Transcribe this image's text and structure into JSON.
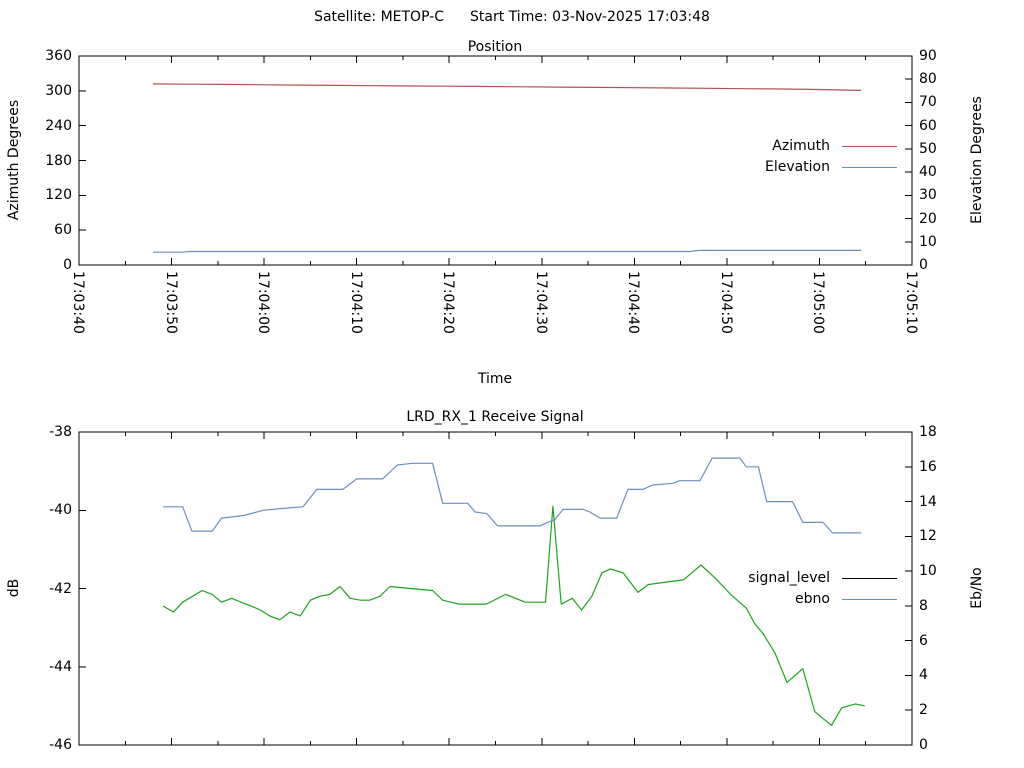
{
  "page": {
    "background": "#ffffff",
    "text_color": "#000000",
    "border_color": "#000000"
  },
  "header": {
    "satellite": "Satellite: METOP-C",
    "start_time": "Start Time: 03-Nov-2025 17:03:48"
  },
  "chart_data": [
    {
      "type": "line",
      "title": "Position",
      "xlabel": "Time",
      "grid": false,
      "legend_position": "right-middle-inside",
      "x_axis": {
        "range_seconds": [
          0,
          90
        ],
        "major_tick_seconds": 10,
        "minor_tick_seconds": 5,
        "tick_labels": [
          "17:03:40",
          "17:03:50",
          "17:04:00",
          "17:04:10",
          "17:04:20",
          "17:04:30",
          "17:04:40",
          "17:04:50",
          "17:05:00",
          "17:05:10"
        ]
      },
      "y_left": {
        "label": "Azimuth Degrees",
        "range": [
          0,
          360
        ],
        "ticks": [
          0,
          60,
          120,
          180,
          240,
          300,
          360
        ]
      },
      "y_right": {
        "label": "Elevation Degrees",
        "range": [
          0,
          90
        ],
        "ticks": [
          0,
          10,
          20,
          30,
          40,
          50,
          60,
          70,
          80,
          90
        ]
      },
      "series": [
        {
          "name": "Azimuth",
          "axis": "left",
          "color": "#b0524f",
          "legend_color": "#b0524f",
          "points": [
            [
              8,
              312.0
            ],
            [
              12,
              311.5
            ],
            [
              16,
              311.0
            ],
            [
              20,
              310.4
            ],
            [
              24,
              309.9
            ],
            [
              28,
              309.4
            ],
            [
              32,
              308.9
            ],
            [
              36,
              308.4
            ],
            [
              40,
              307.9
            ],
            [
              44,
              307.4
            ],
            [
              48,
              306.9
            ],
            [
              52,
              306.4
            ],
            [
              56,
              305.9
            ],
            [
              60,
              305.4
            ],
            [
              64,
              304.9
            ],
            [
              68,
              304.3
            ],
            [
              72,
              303.7
            ],
            [
              76,
              303.1
            ],
            [
              80,
              302.3
            ],
            [
              83,
              301.3
            ],
            [
              84.5,
              300.8
            ]
          ]
        },
        {
          "name": "Elevation",
          "axis": "right",
          "color": "#6d8ebf",
          "legend_color": "#6d8ebf",
          "points": [
            [
              8,
              5.5
            ],
            [
              11,
              5.5
            ],
            [
              12,
              5.8
            ],
            [
              66,
              5.8
            ],
            [
              67,
              6.3
            ],
            [
              84.5,
              6.3
            ]
          ]
        }
      ]
    },
    {
      "type": "line",
      "title": "LRD_RX_1 Receive Signal",
      "xlabel": "",
      "grid": false,
      "legend_position": "right-middle-inside",
      "x_axis": {
        "range_seconds": [
          0,
          90
        ],
        "major_tick_seconds": 10,
        "minor_tick_seconds": 5,
        "tick_labels": []
      },
      "y_left": {
        "label": "dB",
        "range": [
          -46,
          -38
        ],
        "ticks": [
          -38,
          -40,
          -42,
          -44,
          -46
        ]
      },
      "y_right": {
        "label": "Eb/No",
        "range": [
          0,
          18
        ],
        "ticks": [
          0,
          2,
          4,
          6,
          8,
          10,
          12,
          14,
          16,
          18
        ]
      },
      "series": [
        {
          "name": "signal_level",
          "axis": "left",
          "color": "#1ca41c",
          "legend_color": "#000000",
          "points": [
            [
              9.1,
              -42.45
            ],
            [
              10.2,
              -42.6
            ],
            [
              11.2,
              -42.35
            ],
            [
              13.3,
              -42.05
            ],
            [
              14.4,
              -42.15
            ],
            [
              15.4,
              -42.35
            ],
            [
              16.5,
              -42.25
            ],
            [
              17.5,
              -42.35
            ],
            [
              18.6,
              -42.45
            ],
            [
              19.6,
              -42.55
            ],
            [
              20.6,
              -42.7
            ],
            [
              21.7,
              -42.8
            ],
            [
              22.8,
              -42.6
            ],
            [
              23.9,
              -42.7
            ],
            [
              25.0,
              -42.3
            ],
            [
              26.0,
              -42.2
            ],
            [
              27.1,
              -42.15
            ],
            [
              28.2,
              -41.95
            ],
            [
              29.3,
              -42.25
            ],
            [
              30.4,
              -42.3
            ],
            [
              31.4,
              -42.3
            ],
            [
              32.5,
              -42.2
            ],
            [
              33.6,
              -41.95
            ],
            [
              35.8,
              -42.0
            ],
            [
              38.2,
              -42.05
            ],
            [
              39.3,
              -42.3
            ],
            [
              41.0,
              -42.4
            ],
            [
              44.0,
              -42.4
            ],
            [
              46.1,
              -42.15
            ],
            [
              48.2,
              -42.35
            ],
            [
              50.4,
              -42.35
            ],
            [
              51.2,
              -39.9
            ],
            [
              52.1,
              -42.4
            ],
            [
              53.3,
              -42.25
            ],
            [
              54.3,
              -42.55
            ],
            [
              55.4,
              -42.2
            ],
            [
              56.5,
              -41.6
            ],
            [
              57.4,
              -41.5
            ],
            [
              58.8,
              -41.6
            ],
            [
              60.4,
              -42.1
            ],
            [
              61.5,
              -41.9
            ],
            [
              63.0,
              -41.85
            ],
            [
              65.3,
              -41.78
            ],
            [
              67.2,
              -41.4
            ],
            [
              68.8,
              -41.75
            ],
            [
              70.4,
              -42.15
            ],
            [
              72.1,
              -42.5
            ],
            [
              73.0,
              -42.9
            ],
            [
              73.9,
              -43.15
            ],
            [
              75.2,
              -43.65
            ],
            [
              76.5,
              -44.4
            ],
            [
              78.2,
              -44.05
            ],
            [
              79.5,
              -45.15
            ],
            [
              81.3,
              -45.5
            ],
            [
              82.4,
              -45.05
            ],
            [
              83.9,
              -44.95
            ],
            [
              84.9,
              -45.0
            ]
          ]
        },
        {
          "name": "ebno",
          "axis": "right",
          "color": "#6d8ebf",
          "legend_color": "#6d8ebf",
          "points": [
            [
              9.1,
              13.7
            ],
            [
              11.2,
              13.7
            ],
            [
              12.2,
              12.3
            ],
            [
              14.4,
              12.3
            ],
            [
              15.4,
              13.05
            ],
            [
              17.8,
              13.2
            ],
            [
              19.9,
              13.5
            ],
            [
              21.9,
              13.6
            ],
            [
              24.2,
              13.7
            ],
            [
              25.7,
              14.7
            ],
            [
              28.5,
              14.7
            ],
            [
              30.0,
              15.3
            ],
            [
              32.8,
              15.3
            ],
            [
              34.4,
              16.1
            ],
            [
              36.0,
              16.2
            ],
            [
              38.2,
              16.2
            ],
            [
              39.3,
              13.9
            ],
            [
              42.0,
              13.9
            ],
            [
              42.8,
              13.4
            ],
            [
              44.1,
              13.3
            ],
            [
              45.2,
              12.6
            ],
            [
              49.8,
              12.6
            ],
            [
              50.6,
              12.8
            ],
            [
              51.4,
              12.95
            ],
            [
              52.3,
              13.55
            ],
            [
              54.5,
              13.55
            ],
            [
              55.2,
              13.4
            ],
            [
              56.3,
              13.05
            ],
            [
              58.1,
              13.05
            ],
            [
              59.3,
              14.7
            ],
            [
              60.9,
              14.7
            ],
            [
              62.0,
              14.95
            ],
            [
              64.2,
              15.05
            ],
            [
              64.9,
              15.2
            ],
            [
              67.1,
              15.2
            ],
            [
              68.4,
              16.5
            ],
            [
              71.4,
              16.5
            ],
            [
              72.1,
              16.0
            ],
            [
              73.4,
              16.0
            ],
            [
              74.3,
              14.0
            ],
            [
              77.1,
              14.0
            ],
            [
              78.2,
              12.8
            ],
            [
              80.4,
              12.8
            ],
            [
              81.4,
              12.2
            ],
            [
              84.5,
              12.2
            ]
          ]
        }
      ]
    }
  ]
}
